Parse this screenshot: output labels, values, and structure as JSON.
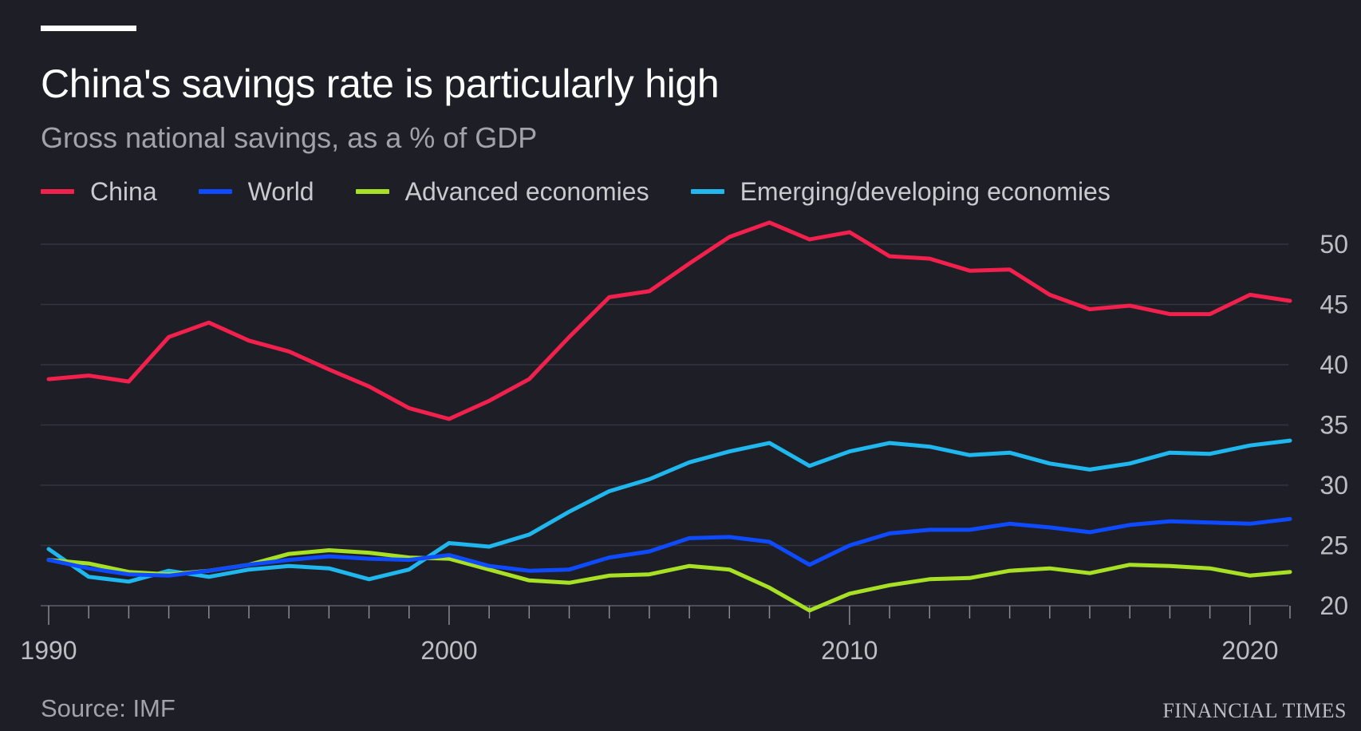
{
  "header": {
    "title": "China's savings rate is particularly high",
    "subtitle": "Gross national savings, as a % of GDP"
  },
  "footer": {
    "source": "Source: IMF",
    "brand": "FINANCIAL TIMES"
  },
  "chart_data": {
    "type": "line",
    "title": "China's savings rate is particularly high",
    "subtitle": "Gross national savings, as a % of GDP",
    "xlabel": "",
    "ylabel": "",
    "xlim": [
      1990,
      2021
    ],
    "ylim": [
      20,
      52
    ],
    "yticks": [
      20,
      25,
      30,
      35,
      40,
      45,
      50
    ],
    "xtick_labels": [
      1990,
      2000,
      2010,
      2020
    ],
    "ytick_side": "right",
    "legend_position": "top-left",
    "x": [
      1990,
      1991,
      1992,
      1993,
      1994,
      1995,
      1996,
      1997,
      1998,
      1999,
      2000,
      2001,
      2002,
      2003,
      2004,
      2005,
      2006,
      2007,
      2008,
      2009,
      2010,
      2011,
      2012,
      2013,
      2014,
      2015,
      2016,
      2017,
      2018,
      2019,
      2020,
      2021
    ],
    "series": [
      {
        "name": "China",
        "color": "#f2204c",
        "values": [
          38.8,
          39.1,
          38.6,
          42.3,
          43.5,
          42.0,
          41.1,
          39.6,
          38.2,
          36.4,
          35.5,
          37.0,
          38.8,
          42.3,
          45.6,
          46.1,
          48.4,
          50.6,
          51.8,
          50.4,
          51.0,
          49.0,
          48.8,
          47.8,
          47.9,
          45.8,
          44.6,
          44.9,
          44.2,
          44.2,
          45.8,
          45.3
        ]
      },
      {
        "name": "World",
        "color": "#0e4bff",
        "values": [
          23.8,
          23.1,
          22.6,
          22.5,
          22.9,
          23.4,
          23.8,
          24.1,
          23.9,
          23.8,
          24.2,
          23.3,
          22.9,
          23.0,
          24.0,
          24.5,
          25.6,
          25.7,
          25.3,
          23.4,
          25.0,
          26.0,
          26.3,
          26.3,
          26.8,
          26.5,
          26.1,
          26.7,
          27.0,
          26.9,
          26.8,
          27.2
        ]
      },
      {
        "name": "Advanced economies",
        "color": "#a8e025",
        "values": [
          23.8,
          23.5,
          22.8,
          22.6,
          22.9,
          23.4,
          24.3,
          24.6,
          24.4,
          24.0,
          23.9,
          23.0,
          22.1,
          21.9,
          22.5,
          22.6,
          23.3,
          23.0,
          21.5,
          19.6,
          21.0,
          21.7,
          22.2,
          22.3,
          22.9,
          23.1,
          22.7,
          23.4,
          23.3,
          23.1,
          22.5,
          22.8
        ]
      },
      {
        "name": "Emerging/developing economies",
        "color": "#1fb7ee",
        "values": [
          24.7,
          22.4,
          22.0,
          22.9,
          22.4,
          23.0,
          23.3,
          23.1,
          22.2,
          23.0,
          25.2,
          24.9,
          25.9,
          27.8,
          29.5,
          30.5,
          31.9,
          32.8,
          33.5,
          31.6,
          32.8,
          33.5,
          33.2,
          32.5,
          32.7,
          31.8,
          31.3,
          31.8,
          32.7,
          32.6,
          33.3,
          33.7
        ]
      }
    ]
  }
}
